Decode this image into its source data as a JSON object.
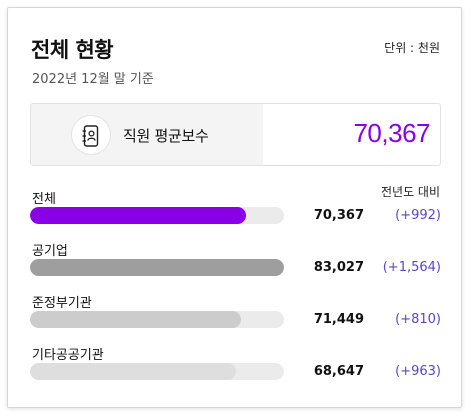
{
  "header": {
    "title": "전체 현황",
    "unit": "단위 : 천원",
    "subtitle": "2022년 12월 말 기준"
  },
  "summary": {
    "icon": "address-book-icon",
    "label": "직원 평균보수",
    "value": "70,367"
  },
  "yoy_header": "전년도 대비",
  "rows": [
    {
      "label": "전체",
      "value": "70,367",
      "delta": "(+992)",
      "fill_fraction": 0.85,
      "color": "#8a00e6"
    },
    {
      "label": "공기업",
      "value": "83,027",
      "delta": "(+1,564)",
      "fill_fraction": 1.0,
      "color": "#9e9e9e"
    },
    {
      "label": "준정부기관",
      "value": "71,449",
      "delta": "(+810)",
      "fill_fraction": 0.83,
      "color": "#cccccc"
    },
    {
      "label": "기타공공기관",
      "value": "68,647",
      "delta": "(+963)",
      "fill_fraction": 0.81,
      "color": "#dedede"
    }
  ]
}
